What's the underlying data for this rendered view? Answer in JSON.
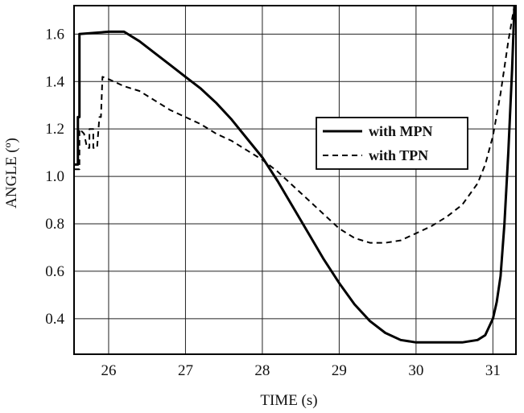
{
  "chart_data": {
    "type": "line",
    "title": "",
    "xlabel": "TIME (s)",
    "ylabel": "ANGLE (º)",
    "xlim": [
      25.55,
      31.3
    ],
    "ylim": [
      0.25,
      1.72
    ],
    "xticks": [
      26,
      27,
      28,
      29,
      30,
      31
    ],
    "xtick_labels": [
      "26",
      "27",
      "28",
      "29",
      "30",
      "31"
    ],
    "yticks": [
      0.4,
      0.6,
      0.8,
      1.0,
      1.2,
      1.4,
      1.6
    ],
    "ytick_labels": [
      "0.4",
      "0.6",
      "0.8",
      "1.0",
      "1.2",
      "1.4",
      "1.6"
    ],
    "grid": true,
    "legend_position": "center-right",
    "series": [
      {
        "name": "with MPN",
        "style": "solid",
        "color": "#000000",
        "x": [
          25.55,
          25.6,
          25.6,
          25.62,
          25.62,
          26.0,
          26.2,
          26.4,
          26.6,
          26.8,
          27.0,
          27.2,
          27.4,
          27.6,
          27.8,
          28.0,
          28.2,
          28.4,
          28.6,
          28.8,
          29.0,
          29.2,
          29.4,
          29.6,
          29.8,
          30.0,
          30.2,
          30.4,
          30.6,
          30.8,
          30.9,
          31.0,
          31.05,
          31.1,
          31.15,
          31.2,
          31.25,
          31.28
        ],
        "y": [
          1.05,
          1.05,
          1.25,
          1.25,
          1.6,
          1.61,
          1.61,
          1.57,
          1.52,
          1.47,
          1.42,
          1.37,
          1.31,
          1.24,
          1.16,
          1.08,
          0.98,
          0.87,
          0.76,
          0.65,
          0.55,
          0.46,
          0.39,
          0.34,
          0.31,
          0.3,
          0.3,
          0.3,
          0.3,
          0.31,
          0.33,
          0.4,
          0.47,
          0.58,
          0.8,
          1.1,
          1.45,
          1.72
        ]
      },
      {
        "name": "with TPN",
        "style": "dashed",
        "color": "#000000",
        "x": [
          25.55,
          25.62,
          25.62,
          25.68,
          25.72,
          25.75,
          25.75,
          25.8,
          25.8,
          25.85,
          25.88,
          25.9,
          25.92,
          26.0,
          26.2,
          26.4,
          26.6,
          26.8,
          27.0,
          27.2,
          27.4,
          27.6,
          27.8,
          28.0,
          28.2,
          28.4,
          28.6,
          28.8,
          29.0,
          29.2,
          29.4,
          29.6,
          29.8,
          30.0,
          30.2,
          30.4,
          30.6,
          30.8,
          30.9,
          31.0,
          31.1,
          31.2,
          31.28
        ],
        "y": [
          1.03,
          1.03,
          1.2,
          1.18,
          1.12,
          1.12,
          1.2,
          1.2,
          1.12,
          1.12,
          1.25,
          1.25,
          1.42,
          1.41,
          1.38,
          1.36,
          1.32,
          1.28,
          1.25,
          1.22,
          1.18,
          1.15,
          1.11,
          1.07,
          1.02,
          0.96,
          0.9,
          0.84,
          0.78,
          0.74,
          0.72,
          0.72,
          0.73,
          0.76,
          0.79,
          0.83,
          0.88,
          0.97,
          1.05,
          1.17,
          1.35,
          1.57,
          1.72
        ]
      }
    ]
  }
}
